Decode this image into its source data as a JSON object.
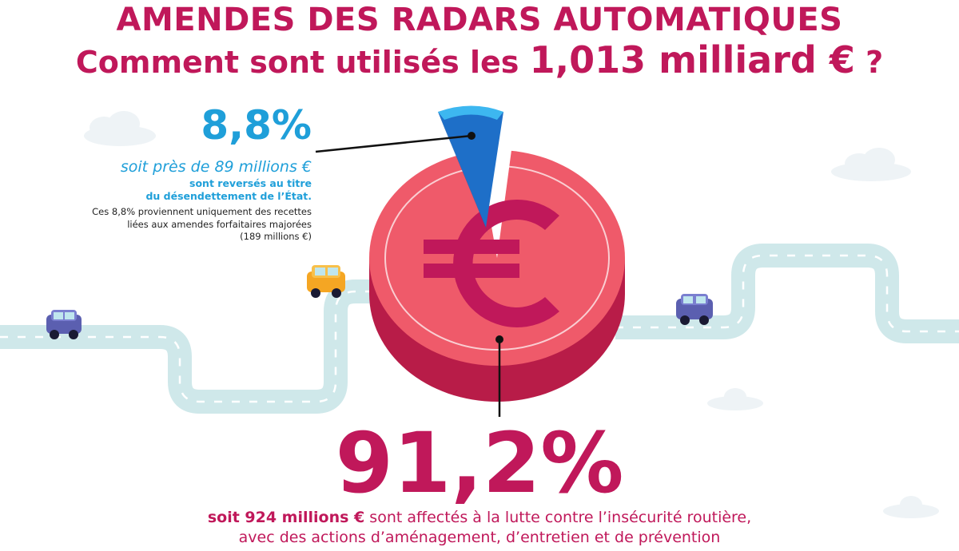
{
  "title": {
    "line1": "AMENDES DES RADARS AUTOMATIQUES",
    "line2_before": "Comment sont utilisés les ",
    "line2_amount": "1,013 milliard €",
    "line2_after": " ?"
  },
  "small_share": {
    "percent": "8,8%",
    "amount": "soit près de 89 millions €",
    "line1": "sont reversés au titre",
    "line2": "du désendettement de l’État.",
    "note_line1": "Ces 8,8% proviennent uniquement des recettes",
    "note_line2": "liées aux amendes forfaitaires majorées",
    "note_line3": "(189 millions €)"
  },
  "large_share": {
    "percent": "91,2%",
    "amount": "soit 924 millions €",
    "line1_rest": " sont affectés à la lutte contre l’insécurité routière,",
    "line2": "avec des actions d’aménagement, d’entretien et de prévention"
  },
  "colors": {
    "brand_magenta": "#c0185a",
    "coin_red": "#ef5a6a",
    "slice_blue": "#1f9fd9",
    "road": "#cfe8ea"
  },
  "icons": [
    "euro-icon",
    "car-icon",
    "cloud-icon"
  ],
  "chart_data": {
    "type": "pie",
    "title": "AMENDES DES RADARS AUTOMATIQUES",
    "subtitle": "Comment sont utilisés les 1,013 milliard € ?",
    "total": "1,013 milliard €",
    "labels": [
      "8,8%",
      "91,2%"
    ],
    "values": [
      8.8,
      91.2
    ],
    "amounts": [
      "89 millions €",
      "924 millions €"
    ],
    "colors": [
      "#1f9fd9",
      "#ef5a6a"
    ]
  }
}
